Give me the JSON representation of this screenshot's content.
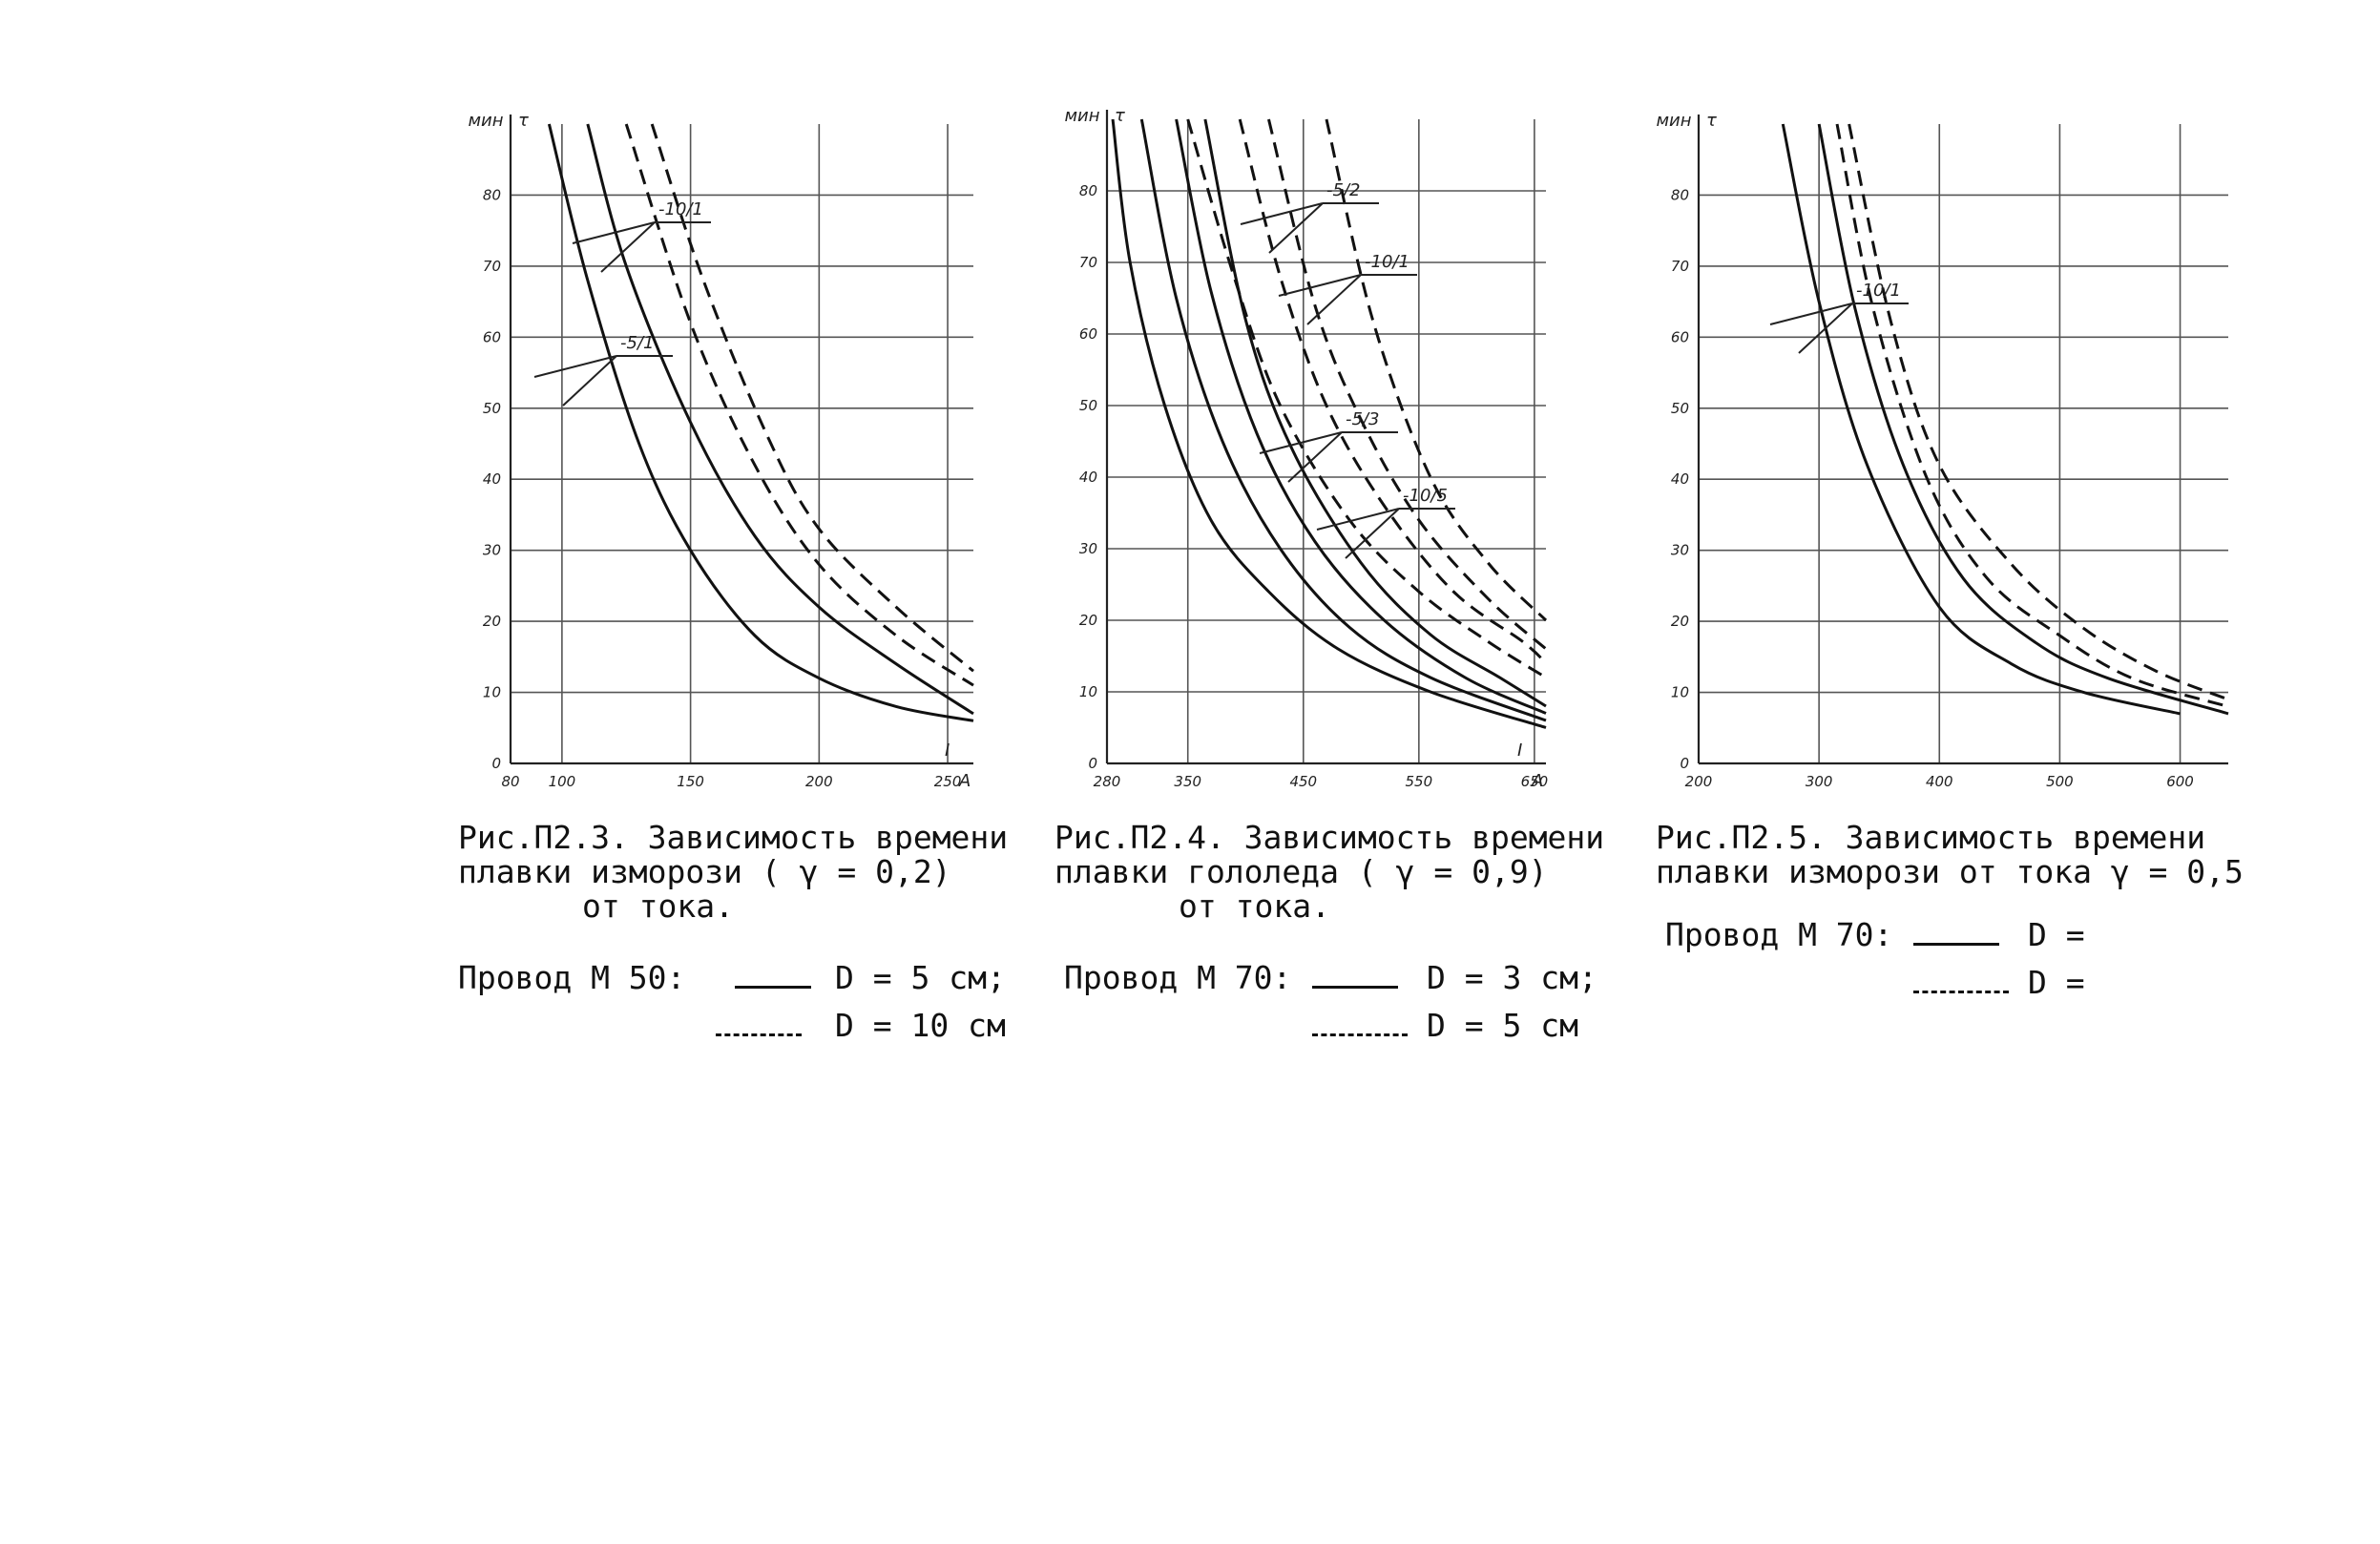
{
  "chart_data": [
    {
      "type": "line",
      "title": "Рис.П2.3. Зависимость времени плавки изморози ( γ = 0,2) от тока.",
      "caption_lines": [
        "Рис.П2.3. Зависимость времени",
        "плавки изморози ( γ = 0,2)",
        "от тока."
      ],
      "xlabel": "I",
      "xunit": "А",
      "ylabel": "τ",
      "yunit": "мин",
      "xlim": [
        80,
        260
      ],
      "ylim": [
        0,
        90
      ],
      "xticks": [
        80,
        100,
        150,
        200,
        250
      ],
      "xtick_labels": [
        "80",
        "100",
        "150",
        "200",
        "250"
      ],
      "yticks": [
        0,
        10,
        20,
        30,
        40,
        50,
        60,
        70,
        80
      ],
      "grid": true,
      "legend": {
        "wire": "Провод М 50:",
        "solid": "D = 5 см;",
        "dashed": "D = 10 см"
      },
      "curve_labels": [
        "-5/1",
        "-10/1"
      ],
      "series": [
        {
          "style": "solid",
          "x": [
            95,
            110,
            130,
            150,
            175,
            200,
            230,
            260
          ],
          "y": [
            90,
            68,
            45,
            30,
            18,
            12,
            8,
            6
          ]
        },
        {
          "style": "solid",
          "x": [
            110,
            125,
            150,
            175,
            200,
            230,
            260
          ],
          "y": [
            90,
            70,
            48,
            32,
            22,
            14,
            7
          ]
        },
        {
          "style": "dashed",
          "x": [
            125,
            150,
            175,
            200,
            230,
            260
          ],
          "y": [
            90,
            62,
            42,
            28,
            18,
            11
          ]
        },
        {
          "style": "dashed",
          "x": [
            135,
            155,
            180,
            200,
            230,
            260
          ],
          "y": [
            90,
            68,
            46,
            33,
            22,
            13
          ]
        }
      ]
    },
    {
      "type": "line",
      "title": "Рис.П2.4. Зависимость времени плавки гололеда ( γ = 0,9) от тока.",
      "caption_lines": [
        "Рис.П2.4. Зависимость времени",
        "плавки гололеда ( γ = 0,9)",
        "от тока."
      ],
      "xlabel": "I",
      "xunit": "А",
      "ylabel": "τ",
      "yunit": "мин",
      "xlim": [
        280,
        660
      ],
      "ylim": [
        0,
        90
      ],
      "xticks": [
        280,
        350,
        450,
        550,
        650
      ],
      "xtick_labels": [
        "280",
        "350",
        "450",
        "550",
        "650"
      ],
      "yticks": [
        0,
        10,
        20,
        30,
        40,
        50,
        60,
        70,
        80
      ],
      "grid": true,
      "legend": {
        "wire": "Провод М 70:",
        "solid": "D = 3 см;",
        "dashed": "D = 5 см"
      },
      "curve_labels": [
        "-5/2",
        "-10/1",
        "-5/3",
        "-10/5"
      ],
      "series": [
        {
          "style": "solid",
          "x": [
            285,
            300,
            330,
            370,
            420,
            480,
            560,
            660
          ],
          "y": [
            90,
            70,
            50,
            34,
            24,
            16,
            10,
            5
          ]
        },
        {
          "style": "solid",
          "x": [
            310,
            340,
            380,
            430,
            490,
            560,
            660
          ],
          "y": [
            90,
            65,
            45,
            30,
            19,
            12,
            6
          ]
        },
        {
          "style": "solid",
          "x": [
            340,
            370,
            410,
            460,
            520,
            590,
            660
          ],
          "y": [
            90,
            66,
            46,
            31,
            20,
            12,
            7
          ]
        },
        {
          "style": "solid",
          "x": [
            365,
            400,
            440,
            500,
            560,
            620,
            660
          ],
          "y": [
            90,
            62,
            44,
            28,
            18,
            12,
            8
          ]
        },
        {
          "style": "dashed",
          "x": [
            350,
            390,
            430,
            490,
            550,
            610,
            660
          ],
          "y": [
            90,
            68,
            50,
            34,
            24,
            17,
            12
          ]
        },
        {
          "style": "dashed",
          "x": [
            395,
            430,
            470,
            520,
            580,
            640,
            660
          ],
          "y": [
            90,
            68,
            50,
            36,
            24,
            17,
            14
          ]
        },
        {
          "style": "dashed",
          "x": [
            420,
            460,
            500,
            550,
            610,
            660
          ],
          "y": [
            90,
            64,
            48,
            34,
            23,
            16
          ]
        },
        {
          "style": "dashed",
          "x": [
            470,
            510,
            560,
            610,
            660
          ],
          "y": [
            90,
            62,
            40,
            28,
            20
          ]
        }
      ]
    },
    {
      "type": "line",
      "title": "Рис.П2.5. Зависимость времени плавки изморози от тока γ = 0,5",
      "caption_lines": [
        "Рис.П2.5. Зависимость времени",
        "плавки изморози от тока γ = 0,5"
      ],
      "xlabel": "",
      "xunit": "",
      "ylabel": "τ",
      "yunit": "мин",
      "xlim": [
        200,
        640
      ],
      "ylim": [
        0,
        90
      ],
      "xticks": [
        200,
        300,
        400,
        500,
        600
      ],
      "xtick_labels": [
        "200",
        "300",
        "400",
        "500",
        "600"
      ],
      "yticks": [
        0,
        10,
        20,
        30,
        40,
        50,
        60,
        70,
        80
      ],
      "grid": true,
      "legend": {
        "wire": "Провод М 70:",
        "solid": "D =",
        "dashed": "D ="
      },
      "curve_labels": [
        "-10/1"
      ],
      "series": [
        {
          "style": "solid",
          "x": [
            270,
            300,
            340,
            400,
            460,
            520,
            600
          ],
          "y": [
            90,
            65,
            42,
            22,
            14,
            10,
            7
          ]
        },
        {
          "style": "solid",
          "x": [
            300,
            330,
            370,
            420,
            480,
            540,
            640
          ],
          "y": [
            90,
            64,
            42,
            26,
            17,
            12,
            7
          ]
        },
        {
          "style": "dashed",
          "x": [
            315,
            345,
            390,
            440,
            500,
            560,
            640
          ],
          "y": [
            90,
            64,
            40,
            26,
            18,
            12,
            8
          ]
        },
        {
          "style": "dashed",
          "x": [
            325,
            360,
            400,
            460,
            520,
            580,
            640
          ],
          "y": [
            90,
            62,
            42,
            28,
            19,
            13,
            9
          ]
        }
      ]
    }
  ],
  "units": {
    "time": "мин",
    "current": "А"
  }
}
